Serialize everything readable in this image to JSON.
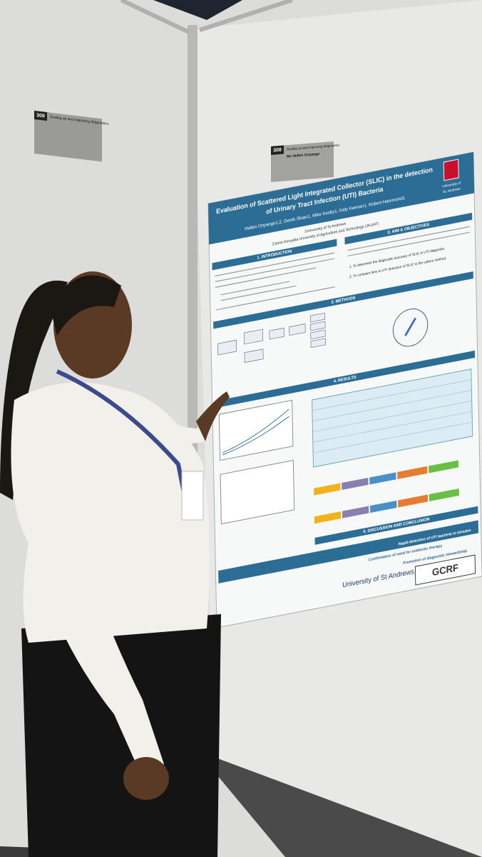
{
  "signs": [
    {
      "number": "309",
      "track": "Scaling up and improving diagnostics"
    },
    {
      "number": "308",
      "track": "Scaling up and improving diagnostics",
      "name": "Ms Hellen Onyango"
    }
  ],
  "poster": {
    "title_lines": [
      "Evaluation of Scattered Light Integrated Collector (SLIC) in the detection",
      "of Urinary Tract Infection (UTI) Bacteria"
    ],
    "authors": "Hellen Onyango1,2, Derek Sloan1, Mike Kesby1, Katy Keenan1, Robert Hammond1",
    "affiliations": [
      "1University of St Andrews",
      "2Jomo Kenyatta University of Agriculture and Technology (JKUAT)"
    ],
    "logo": [
      "University of",
      "St. Andrews"
    ],
    "sections": [
      "1. INTRODUCTION",
      "2. AIM & OBJECTIVES",
      "3. METHODS",
      "4. RESULTS",
      "5. DISCUSSION AND CONCLUSION"
    ],
    "objectives": [
      "1. To determine the diagnostic accuracy of SLIC in UTI diagnosis.",
      "2. To compare time to UTI detection of SLIC to the culture method."
    ],
    "conclusions": [
      "Confirmation of need for antibiotic therapy",
      "Rapid detection of UTI bacteria in minutes",
      "Promotion of diagnostic stewardship"
    ],
    "footer_logos": [
      "University of St Andrews",
      "GCRF"
    ]
  }
}
